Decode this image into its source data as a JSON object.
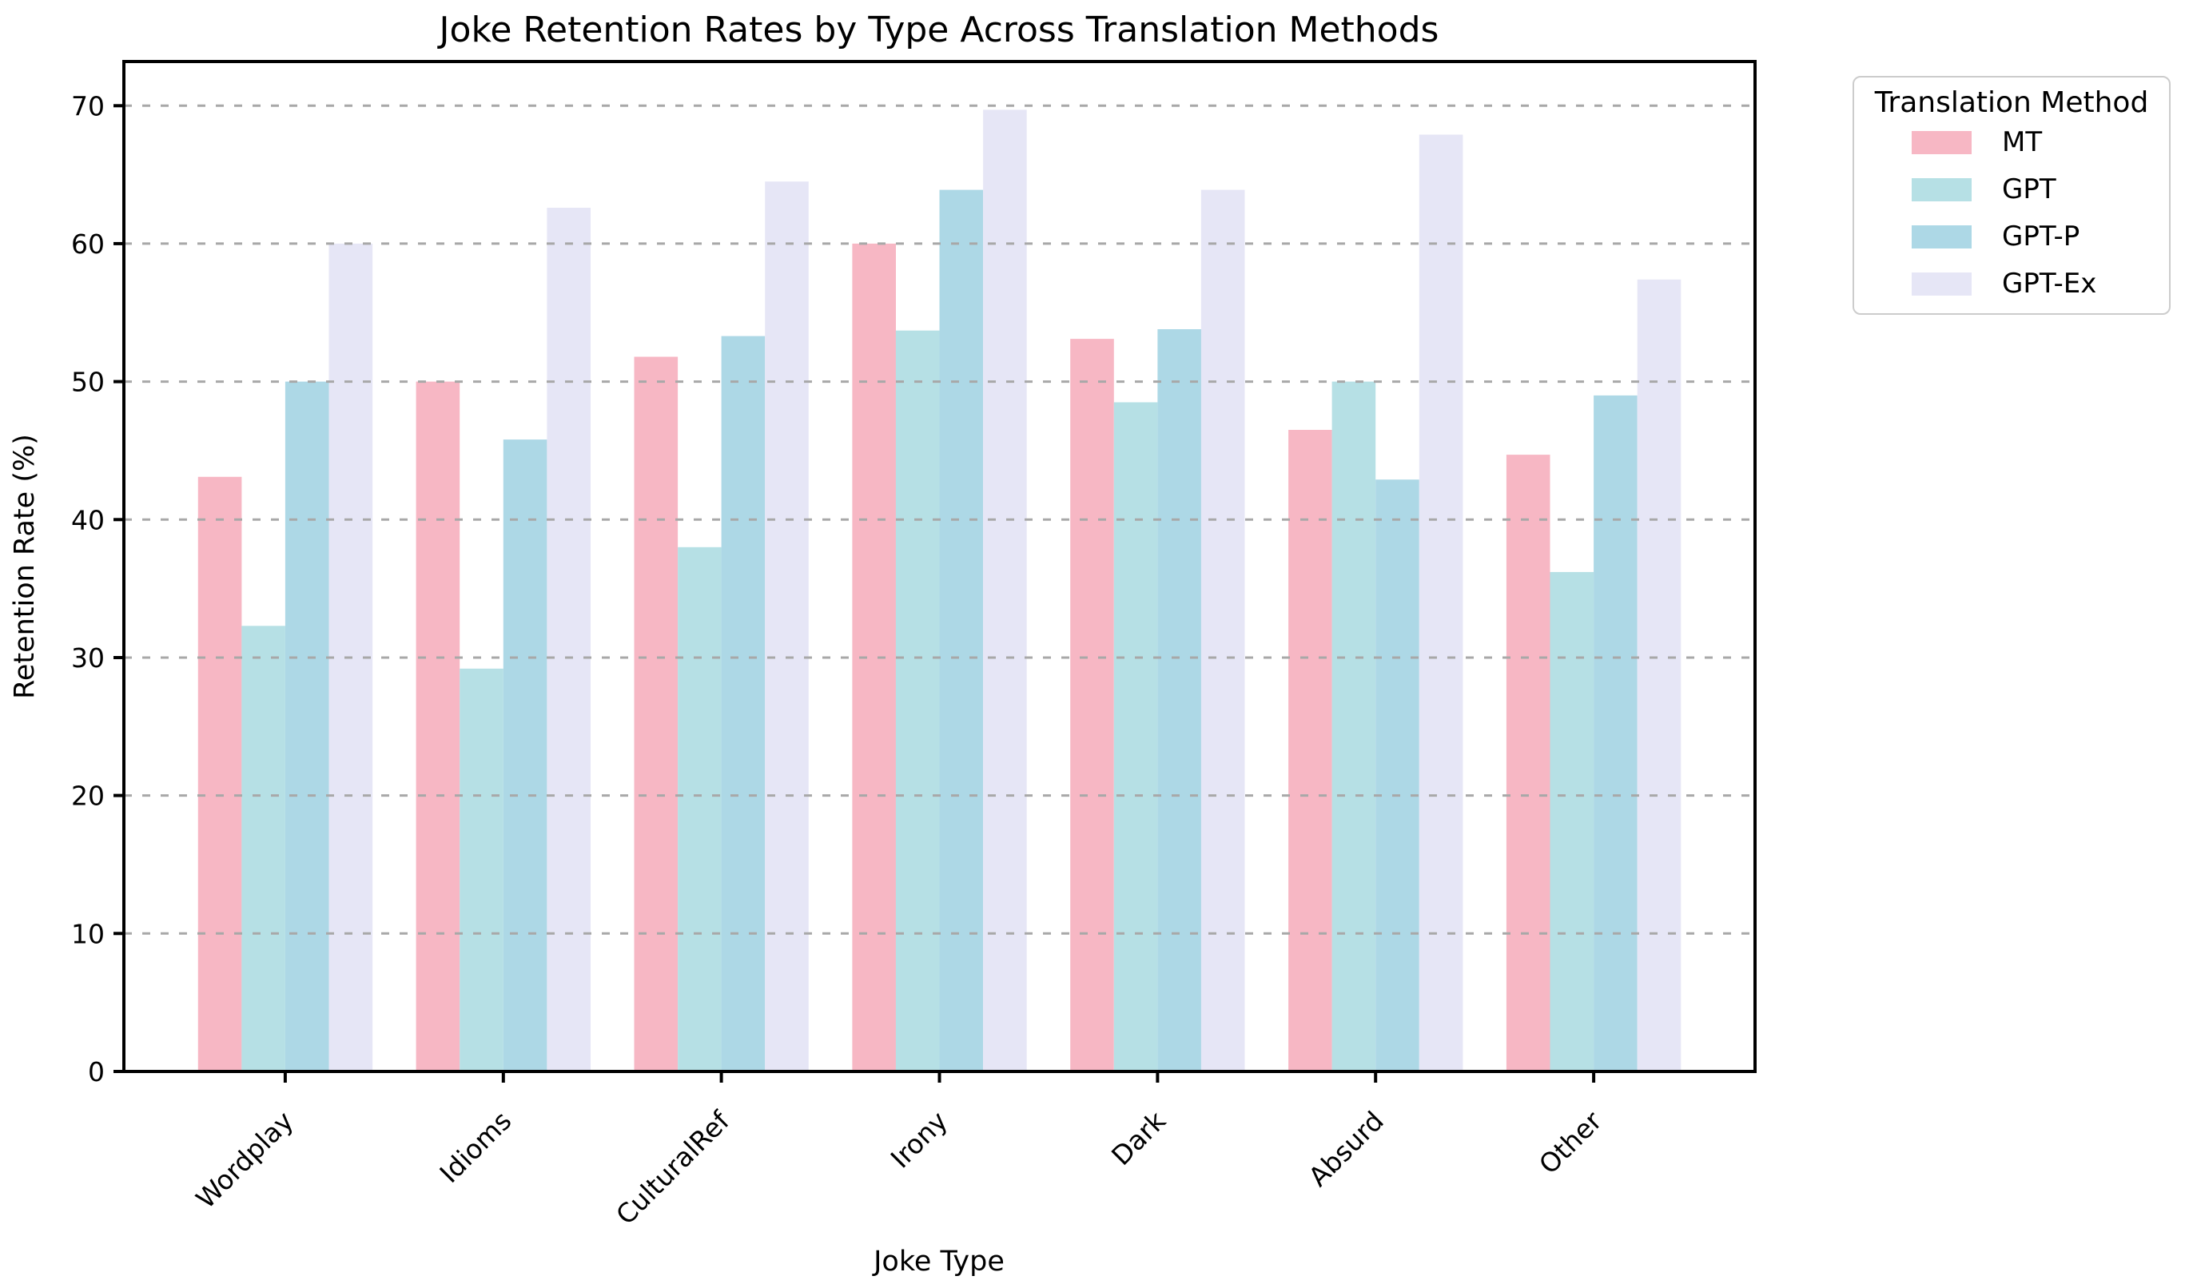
{
  "figure": {
    "background": "#ffffff",
    "text_color": "#000000"
  },
  "chart_data": {
    "type": "bar",
    "title": "Joke Retention Rates by Type Across Translation Methods",
    "xlabel": "Joke Type",
    "ylabel": "Retention Rate (%)",
    "categories": [
      "Wordplay",
      "Idioms",
      "CulturalRef",
      "Irony",
      "Dark",
      "Absurd",
      "Other"
    ],
    "series": [
      {
        "name": "MT",
        "color": "#f7b7c4",
        "values": [
          43.1,
          50.0,
          51.8,
          60.0,
          53.1,
          46.5,
          44.7
        ]
      },
      {
        "name": "GPT",
        "color": "#b6e0e5",
        "values": [
          32.3,
          29.2,
          38.0,
          53.7,
          48.5,
          50.0,
          36.2
        ]
      },
      {
        "name": "GPT-P",
        "color": "#add8e6",
        "values": [
          50.0,
          45.8,
          53.3,
          63.9,
          53.8,
          42.9,
          49.0
        ]
      },
      {
        "name": "GPT-Ex",
        "color": "#e6e6f6",
        "values": [
          60.0,
          62.6,
          64.5,
          69.7,
          63.9,
          67.9,
          57.4
        ]
      }
    ],
    "yticks": [
      0,
      10,
      20,
      30,
      40,
      50,
      60,
      70
    ],
    "ylim": [
      0,
      73.2
    ],
    "xtick_rotation_deg": 45,
    "grid": {
      "axis": "y",
      "style": "dashed",
      "color": "#a8a8a8",
      "above_bars": true
    },
    "legend": {
      "title": "Translation Method",
      "position": "outside-upper-right"
    }
  }
}
